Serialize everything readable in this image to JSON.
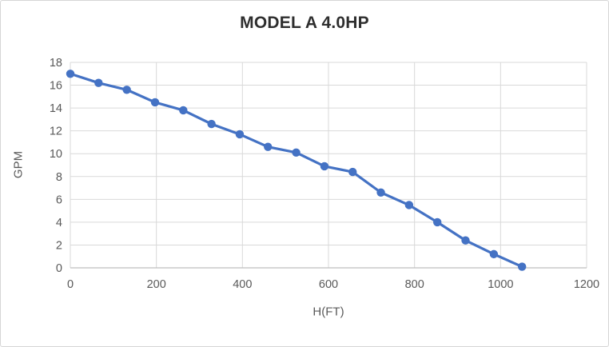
{
  "window": {
    "background": "#ffffff",
    "border_color": "#d6d6d6"
  },
  "chart_data": {
    "type": "line",
    "title": "MODEL A 4.0HP",
    "xlabel": "H(FT)",
    "ylabel": "GPM",
    "xlim": [
      0,
      1200
    ],
    "ylim": [
      0,
      18
    ],
    "x_ticks": [
      0,
      200,
      400,
      600,
      800,
      1000,
      1200
    ],
    "y_ticks": [
      0,
      2,
      4,
      6,
      8,
      10,
      12,
      14,
      16,
      18
    ],
    "grid": true,
    "legend": "none",
    "series": [
      {
        "color": "#4472C4",
        "marker": "circle",
        "x": [
          0,
          65.6,
          131.2,
          196.9,
          262.5,
          328.1,
          393.7,
          459.3,
          524.9,
          590.6,
          656.2,
          721.8,
          787.4,
          853.0,
          918.6,
          984.3,
          1049.9
        ],
        "y": [
          17.0,
          16.2,
          15.6,
          14.5,
          13.8,
          12.6,
          11.7,
          10.6,
          10.1,
          8.9,
          8.4,
          6.6,
          5.5,
          4.0,
          2.4,
          1.2,
          0.1
        ]
      }
    ],
    "colors": {
      "series_blue": "#4472C4",
      "gridline": "#D9D9D9",
      "axis_line": "#BFBFBF",
      "tick_label": "#595959",
      "title_text": "#2e2e2e"
    }
  }
}
